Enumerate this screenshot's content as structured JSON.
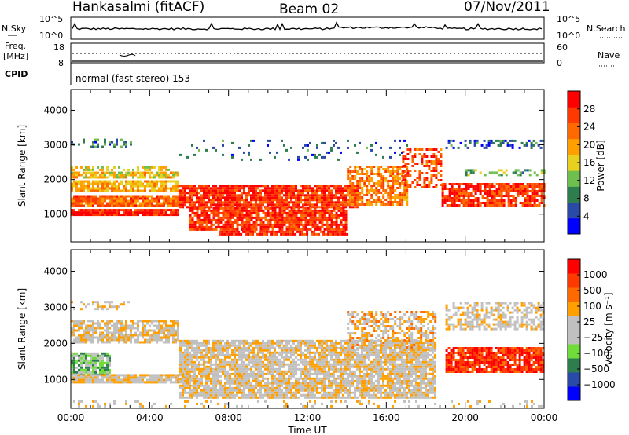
{
  "header": {
    "station": "Hankasalmi (fitACF)",
    "beam": "Beam 02",
    "date": "07/Nov/2011"
  },
  "summary_panel": {
    "nsky_label": "N.Sky",
    "nsky_ticks": [
      "10^5",
      "10^0"
    ],
    "nsearch_label": "N.Search",
    "nsearch_ticks": [
      "10^5",
      "10^0"
    ],
    "freq_label_line1": "Freq.",
    "freq_label_line2": "[MHz]",
    "freq_ticks": [
      "18",
      "8"
    ],
    "nave_label": "Nave",
    "nave_ticks": [
      "60",
      "0"
    ],
    "cpid_label": "CPID",
    "cpid_text": "normal (fast stereo) 153"
  },
  "colors": {
    "power_scale": [
      "#0000ff",
      "#2a4aa8",
      "#2e7d4f",
      "#6fbf4f",
      "#e8d020",
      "#ffa000",
      "#ff6a00",
      "#ff3a00",
      "#ff0000"
    ],
    "velocity_scale": [
      "#0000ff",
      "#2a4aa8",
      "#2e7d4f",
      "#6fdc3a",
      "#c0c0c0",
      "#c0c0c0",
      "#ffa000",
      "#ff6a00",
      "#ff3a00",
      "#ff0000"
    ]
  },
  "chart_data": [
    {
      "type": "heatmap",
      "name_label": "Power panel",
      "ylabel": "Slant Range [km]",
      "ylim": [
        200,
        4600
      ],
      "yticks": [
        "4000",
        "3000",
        "2000",
        "1000"
      ],
      "xlim_hours": [
        0,
        24
      ],
      "colorbar_label": "Power [dB]",
      "colorbar_ticks": [
        "28",
        "24",
        "20",
        "16",
        "12",
        "8",
        "4"
      ],
      "colorbar_range": [
        0,
        32
      ],
      "bands": [
        {
          "t0": 0.0,
          "t1": 3.0,
          "r0": 2920,
          "r1": 3180,
          "level": 0.25,
          "density": 0.35
        },
        {
          "t0": 0.0,
          "t1": 5.0,
          "r0": 2250,
          "r1": 2380,
          "level": 0.5,
          "density": 0.6
        },
        {
          "t0": 0.0,
          "t1": 5.5,
          "r0": 2050,
          "r1": 2230,
          "level": 0.55,
          "density": 0.8
        },
        {
          "t0": 0.0,
          "t1": 5.5,
          "r0": 1700,
          "r1": 1980,
          "level": 0.6,
          "density": 0.85
        },
        {
          "t0": 0.0,
          "t1": 5.5,
          "r0": 1250,
          "r1": 1550,
          "level": 0.75,
          "density": 0.9
        },
        {
          "t0": 0.0,
          "t1": 5.5,
          "r0": 950,
          "r1": 1150,
          "level": 0.9,
          "density": 0.95
        },
        {
          "t0": 5.5,
          "t1": 14.5,
          "r0": 1200,
          "r1": 1850,
          "level": 0.85,
          "density": 0.9
        },
        {
          "t0": 6.0,
          "t1": 14.0,
          "r0": 550,
          "r1": 1200,
          "level": 0.85,
          "density": 0.85
        },
        {
          "t0": 7.5,
          "t1": 14.0,
          "r0": 420,
          "r1": 520,
          "level": 0.9,
          "density": 0.9
        },
        {
          "t0": 14.0,
          "t1": 17.0,
          "r0": 1300,
          "r1": 2400,
          "level": 0.7,
          "density": 0.65
        },
        {
          "t0": 16.8,
          "t1": 18.8,
          "r0": 1800,
          "r1": 2900,
          "level": 0.8,
          "density": 0.45
        },
        {
          "t0": 18.8,
          "t1": 24.0,
          "r0": 1250,
          "r1": 1900,
          "level": 0.85,
          "density": 0.75
        },
        {
          "t0": 20.0,
          "t1": 24.0,
          "r0": 2100,
          "r1": 2300,
          "level": 0.35,
          "density": 0.4
        },
        {
          "t0": 19.0,
          "t1": 24.0,
          "r0": 2900,
          "r1": 3150,
          "level": 0.2,
          "density": 0.35
        },
        {
          "t0": 5.5,
          "t1": 17.0,
          "r0": 2600,
          "r1": 3150,
          "level": 0.2,
          "density": 0.12
        }
      ]
    },
    {
      "type": "heatmap",
      "name_label": "Velocity panel",
      "ylabel": "Slant Range [km]",
      "ylim": [
        200,
        4600
      ],
      "yticks": [
        "4000",
        "3000",
        "2000",
        "1000"
      ],
      "xlim_hours": [
        0,
        24
      ],
      "xticks": [
        "00:00",
        "04:00",
        "08:00",
        "12:00",
        "16:00",
        "20:00",
        "00:00"
      ],
      "xlabel": "Time UT",
      "colorbar_label": "Velocity [m s⁻¹]",
      "colorbar_ticks": [
        "1000",
        "500",
        "100",
        "25",
        "−25",
        "−100",
        "−500",
        "−1000"
      ],
      "colorbar_range": [
        -1000,
        1000
      ],
      "bands": [
        {
          "t0": 0.0,
          "t1": 3.0,
          "r0": 2920,
          "r1": 3180,
          "level": 0.55,
          "density": 0.35
        },
        {
          "t0": 0.0,
          "t1": 5.5,
          "r0": 2000,
          "r1": 2650,
          "level": 0.55,
          "density": 0.75
        },
        {
          "t0": 0.0,
          "t1": 2.0,
          "r0": 1150,
          "r1": 1750,
          "level": 0.35,
          "density": 0.9
        },
        {
          "t0": 0.0,
          "t1": 6.0,
          "r0": 950,
          "r1": 1150,
          "level": 0.55,
          "density": 0.9
        },
        {
          "t0": 5.5,
          "t1": 18.5,
          "r0": 500,
          "r1": 2100,
          "level": 0.55,
          "density": 0.85
        },
        {
          "t0": 14.0,
          "t1": 18.5,
          "r0": 1800,
          "r1": 2900,
          "level": 0.6,
          "density": 0.5
        },
        {
          "t0": 19.0,
          "t1": 24.0,
          "r0": 1200,
          "r1": 1900,
          "level": 0.88,
          "density": 0.85
        },
        {
          "t0": 19.0,
          "t1": 24.0,
          "r0": 2400,
          "r1": 3150,
          "level": 0.55,
          "density": 0.55
        },
        {
          "t0": 0.0,
          "t1": 24.0,
          "r0": 250,
          "r1": 420,
          "level": 0.55,
          "density": 0.2
        }
      ]
    }
  ]
}
